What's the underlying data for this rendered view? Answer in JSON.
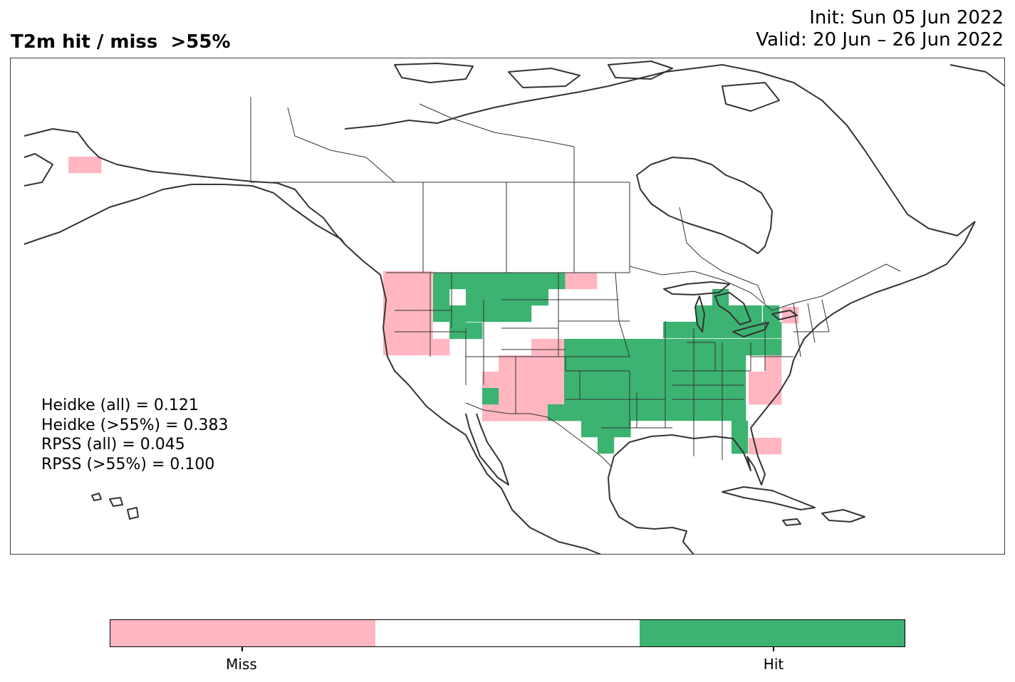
{
  "title": "T2m hit / miss  >55%",
  "init": "Init: Sun 05 Jun 2022",
  "valid": "Valid: 20 Jun – 26 Jun 2022",
  "stats": [
    "Heidke (all) = 0.121",
    "Heidke (>55%) = 0.383",
    "RPSS (all) = 0.045",
    "RPSS (>55%) = 0.100"
  ],
  "colors": {
    "miss": "#ffb6c1",
    "neutral": "#ffffff",
    "hit": "#3cb371",
    "coast": "#333333"
  },
  "legend": [
    {
      "label": "Miss",
      "color": "#ffb6c1"
    },
    {
      "label": "",
      "color": "#ffffff"
    },
    {
      "label": "Hit",
      "color": "#3cb371"
    }
  ],
  "tick_labels": {
    "miss": "Miss",
    "hit": "Hit"
  }
}
